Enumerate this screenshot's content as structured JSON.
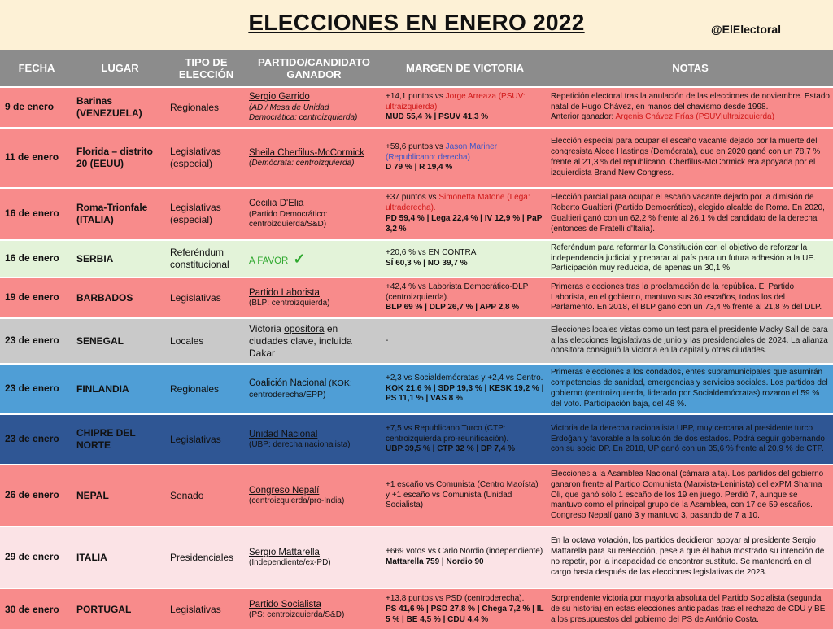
{
  "header": {
    "title": "ELECCIONES EN ENERO 2022",
    "handle": "@ElElectoral"
  },
  "columns": {
    "fecha": "FECHA",
    "lugar": "LUGAR",
    "tipo": "TIPO DE ELECCIÓN",
    "partido": "PARTIDO/CANDIDATO GANADOR",
    "margen": "MARGEN DE VICTORIA",
    "notas": "NOTAS"
  },
  "rows": [
    {
      "color": "#f88b8b",
      "fecha": "9 de enero",
      "lugar": "Barinas (VENEZUELA)",
      "tipo": "Regionales",
      "ganador": "Sergio Garrido",
      "ganador_sub": "(AD / Mesa de Unidad Democrática: centroizquierda)",
      "margen_pre": "+14,1 puntos vs ",
      "margen_rival": "Jorge Arreaza (PSUV: ultraizquierda)",
      "margen_res": "MUD 55,4 % | PSUV 41,3 %",
      "notas": "Repetición electoral tras la anulación de las elecciones de noviembre. Estado natal de Hugo Chávez, en manos del chavismo desde 1998.",
      "notas_pre": "Anterior ganador: ",
      "notas_hl": "Argenis Chávez Frías (PSUV|ultraizquierda)"
    },
    {
      "color": "#f88b8b",
      "fecha": "11 de enero",
      "lugar": "Florida – distrito 20 (EEUU)",
      "tipo": "Legislativas (especial)",
      "ganador": "Sheila Cherfilus-McCormick",
      "ganador_sub": "(Demócrata: centroizquierda)",
      "margen_pre": "+59,6 puntos vs ",
      "margen_rival": "Jason Mariner (Republicano: derecha)",
      "margen_res": "D 79 % | R 19,4 %",
      "notas": "Elección especial para ocupar el escaño vacante dejado por la muerte del congresista Alcee Hastings (Demócrata), que en 2020 ganó con un 78,7 % frente al 21,3 % del republicano. Cherfilus-McCormick era apoyada por el izquierdista Brand New Congress."
    },
    {
      "color": "#f88b8b",
      "fecha": "16 de enero",
      "lugar": "Roma-Trionfale (ITALIA)",
      "tipo": "Legislativas (especial)",
      "ganador": "Cecilia D'Elia",
      "ganador_sub": "(Partido Democrático: centroizquierda/S&D)",
      "margen_pre": "+37 puntos vs ",
      "margen_rival": "Simonetta Matone (Lega: ultraderecha).",
      "margen_res": "PD 59,4 % | Lega 22,4 % | IV 12,9 % | PaP 3,2 %",
      "notas": "Elección parcial para ocupar el escaño vacante dejado por la dimisión de Roberto Gualtieri (Partido Democrático), elegido alcalde de Roma. En 2020, Gualtieri ganó con un 62,2 % frente al 26,1 % del candidato de la derecha (entonces de Fratelli d'Italia)."
    },
    {
      "color": "#e3f3d9",
      "fecha": "16 de enero",
      "lugar": "SERBIA",
      "tipo": "Referéndum constitucional",
      "ganador": "A FAVOR",
      "margen_pre": "+20,6 % vs EN CONTRA",
      "margen_res": "SÍ 60,3 % | NO 39,7 %",
      "notas": "Referéndum para reformar la Constitución con el objetivo de reforzar la independencia judicial y preparar al país para un futura adhesión a la UE. Participación muy reducida, de apenas un 30,1 %."
    },
    {
      "color": "#f88b8b",
      "fecha": "19 de enero",
      "lugar": "BARBADOS",
      "tipo": "Legislativas",
      "ganador": "Partido Laborista",
      "ganador_sub": "(BLP: centroizquierda)",
      "margen_pre": "+42,4 % vs Laborista Democrático-DLP (centroizquierda).",
      "margen_res": "BLP 69 % | DLP 26,7 % | APP 2,8 %",
      "notas": "Primeras elecciones tras la proclamación de la república. El Partido Laborista, en el gobierno, mantuvo sus 30 escaños, todos los del Parlamento. En 2018, el BLP ganó con un 73,4 % frente al 21,8 % del DLP."
    },
    {
      "color": "#c9c9c9",
      "fecha": "23 de enero",
      "lugar": "SENEGAL",
      "tipo": "Locales",
      "ganador_pre": "Victoria ",
      "ganador_u": "opositora",
      "ganador_post": " en ciudades clave, incluida Dakar",
      "margen_pre": "-",
      "notas": "Elecciones locales vistas como un test para el presidente Macky Sall de cara a las elecciones legislativas de junio y las presidenciales de 2024. La alianza opositora consiguió la victoria en la capital y otras ciudades."
    },
    {
      "color": "#4f9ed6",
      "fecha": "23 de enero",
      "lugar": "FINLANDIA",
      "tipo": "Regionales",
      "ganador": "Coalición Nacional",
      "ganador_inline": " (KOK: centroderecha/EPP)",
      "margen_pre": "+2,3 vs Socialdemócratas y +2,4 vs Centro.",
      "margen_res": "KOK 21,6 % | SDP 19,3 % | KESK 19,2 % | PS 11,1 % | VAS 8 %",
      "notas": "Primeras elecciones a los condados, entes supramunicipales que asumirán competencias de sanidad, emergencias y servicios sociales. Los partidos del gobierno (centroizquierda, liderado por Socialdemócratas) rozaron el 59 % del voto. Participación baja, del 48 %."
    },
    {
      "color": "#2f5694",
      "fecha": "23 de enero",
      "lugar": "CHIPRE DEL NORTE",
      "tipo": "Legislativas",
      "ganador": "Unidad Nacional",
      "ganador_sub": "(UBP: derecha nacionalista)",
      "margen_pre": "+7,5 vs Republicano Turco (CTP: centroizquierda pro-reunificación).",
      "margen_res": "UBP 39,5 % | CTP 32 % | DP 7,4 %",
      "notas": "Victoria de la derecha nacionalista UBP, muy cercana al presidente turco Erdoğan y favorable a la solución de dos estados. Podrá seguir gobernando con su socio DP.  En 2018, UP ganó con un 35,6 % frente al 20,9 % de CTP."
    },
    {
      "color": "#f88b8b",
      "fecha": "26 de enero",
      "lugar": "NEPAL",
      "tipo": "Senado",
      "ganador": "Congreso Nepalí",
      "ganador_sub": "(centroizquierda/pro-India)",
      "margen_pre": "+1 escaño vs Comunista (Centro Maoísta) y +1 escaño vs Comunista (Unidad Socialista)",
      "notas": "Elecciones a la Asamblea Nacional (cámara alta). Los partidos del gobierno ganaron frente al Partido Comunista (Marxista-Leninista) del exPM Sharma Oli, que ganó sólo 1 escaño de los 19 en juego. Perdió 7, aunque se mantuvo como el principal grupo de la Asamblea, con 17 de 59 escaños. Congreso Nepalí ganó 3 y mantuvo 3, pasando de 7 a 10."
    },
    {
      "color": "#fbe3e6",
      "fecha": "29 de enero",
      "lugar": "ITALIA",
      "tipo": "Presidenciales",
      "ganador": "Sergio Mattarella",
      "ganador_sub": "(Independiente/ex-PD)",
      "margen_pre": "+669 votos vs Carlo Nordio (independiente)",
      "margen_res": "Mattarella 759 | Nordio 90",
      "notas": "En la octava votación, los partidos decidieron apoyar al presidente Sergio Mattarella para su reelección, pese a que él había mostrado su intención de no repetir, por la incapacidad de encontrar sustituto. Se mantendrá en el cargo hasta después de las elecciones legislativas de 2023."
    },
    {
      "color": "#f88b8b",
      "fecha": "30 de enero",
      "lugar": "PORTUGAL",
      "tipo": "Legislativas",
      "ganador": "Partido Socialista",
      "ganador_sub": "(PS: centroizquierda/S&D)",
      "margen_pre": "+13,8 puntos vs PSD (centroderecha).",
      "margen_res": "PS 41,6 % | PSD 27,8 % | Chega 7,2 % | IL 5 % | BE 4,5 % | CDU 4,4 %",
      "notas": "Sorprendente victoria por mayoría absoluta del Partido Socialista (segunda de su historia) en estas elecciones anticipadas tras el rechazo de CDU y BE a los presupuestos del gobierno del PS de António Costa."
    }
  ]
}
